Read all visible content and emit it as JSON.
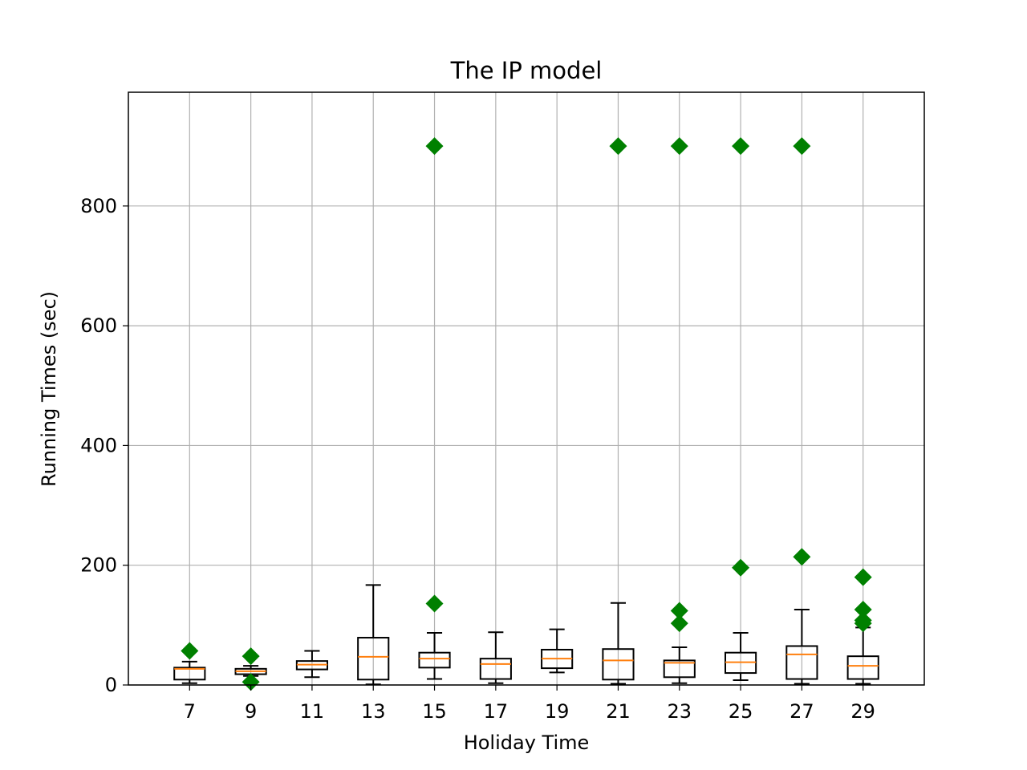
{
  "chart_data": {
    "type": "box",
    "title": "The IP model",
    "xlabel": "Holiday Time",
    "ylabel": "Running Times (sec)",
    "categories": [
      "7",
      "9",
      "11",
      "13",
      "15",
      "17",
      "19",
      "21",
      "23",
      "25",
      "27",
      "29"
    ],
    "yticks": [
      0,
      200,
      400,
      600,
      800
    ],
    "ylim": [
      0,
      990
    ],
    "grid": true,
    "colors": {
      "box": "#000000",
      "median": "#ff7f0e",
      "flier": "#008000",
      "grid": "#b0b0b0"
    },
    "boxes": [
      {
        "whisker_low": 3,
        "q1": 9,
        "median": 27,
        "q3": 29,
        "whisker_high": 39,
        "fliers": [
          57
        ]
      },
      {
        "whisker_low": 15,
        "q1": 18,
        "median": 23,
        "q3": 27,
        "whisker_high": 32,
        "fliers": [
          48,
          5
        ]
      },
      {
        "whisker_low": 13,
        "q1": 26,
        "median": 34,
        "q3": 40,
        "whisker_high": 57,
        "fliers": []
      },
      {
        "whisker_low": 1,
        "q1": 9,
        "median": 47,
        "q3": 79,
        "whisker_high": 167,
        "fliers": []
      },
      {
        "whisker_low": 10,
        "q1": 29,
        "median": 44,
        "q3": 54,
        "whisker_high": 87,
        "fliers": [
          900,
          136
        ]
      },
      {
        "whisker_low": 3,
        "q1": 10,
        "median": 35,
        "q3": 44,
        "whisker_high": 88,
        "fliers": []
      },
      {
        "whisker_low": 21,
        "q1": 28,
        "median": 44,
        "q3": 59,
        "whisker_high": 93,
        "fliers": []
      },
      {
        "whisker_low": 2,
        "q1": 9,
        "median": 41,
        "q3": 60,
        "whisker_high": 137,
        "fliers": [
          900
        ]
      },
      {
        "whisker_low": 3,
        "q1": 13,
        "median": 37,
        "q3": 41,
        "whisker_high": 63,
        "fliers": [
          900,
          124,
          103
        ]
      },
      {
        "whisker_low": 8,
        "q1": 20,
        "median": 38,
        "q3": 54,
        "whisker_high": 87,
        "fliers": [
          900,
          196
        ]
      },
      {
        "whisker_low": 2,
        "q1": 10,
        "median": 51,
        "q3": 65,
        "whisker_high": 126,
        "fliers": [
          900,
          214
        ]
      },
      {
        "whisker_low": 2,
        "q1": 10,
        "median": 32,
        "q3": 48,
        "whisker_high": 96,
        "fliers": [
          180,
          126,
          108,
          103
        ]
      }
    ]
  }
}
